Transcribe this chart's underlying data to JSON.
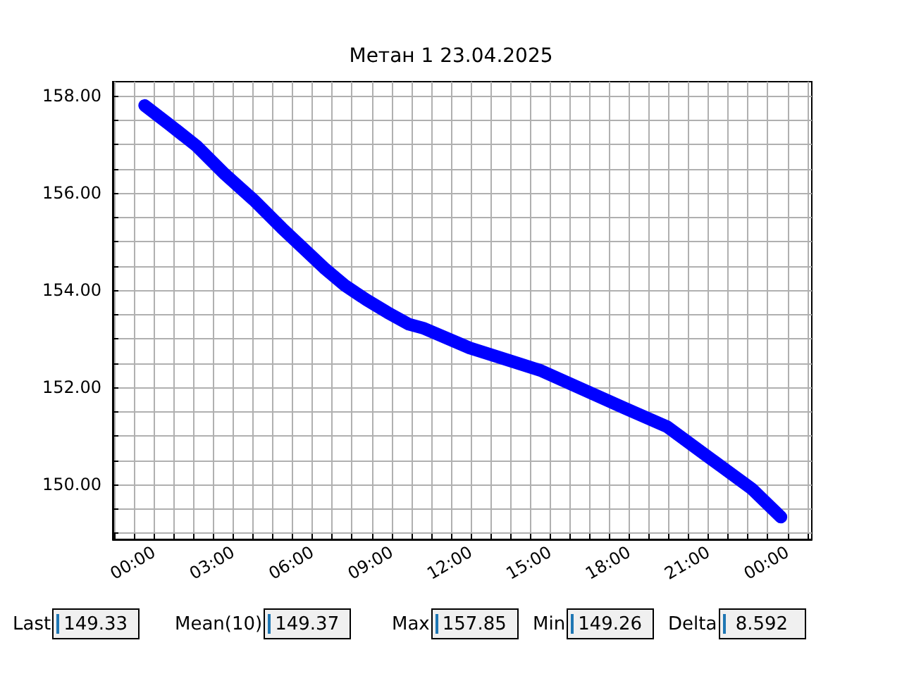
{
  "chart_data": {
    "type": "line",
    "title": "Метан 1 23.04.2025",
    "series": [
      {
        "color": "#0000ff",
        "x": [
          -0.35,
          0.56,
          1.63,
          2.7,
          3.77,
          4.84,
          5.64,
          6.44,
          7.25,
          8.05,
          8.85,
          9.65,
          10.19,
          11.96,
          14.63,
          17.84,
          19.44,
          20.89,
          22.65,
          23.75
        ],
        "values": [
          157.8,
          157.42,
          156.96,
          156.38,
          155.86,
          155.28,
          154.87,
          154.46,
          154.09,
          153.8,
          153.54,
          153.3,
          153.22,
          152.81,
          152.35,
          151.57,
          151.19,
          150.61,
          149.91,
          149.33
        ]
      }
    ],
    "xlim": [
      -1.56,
      24.92
    ],
    "xticks": [
      {
        "value": 0,
        "label": "00:00"
      },
      {
        "value": 3,
        "label": "03:00"
      },
      {
        "value": 6,
        "label": "06:00"
      },
      {
        "value": 9,
        "label": "09:00"
      },
      {
        "value": 12,
        "label": "12:00"
      },
      {
        "value": 15,
        "label": "15:00"
      },
      {
        "value": 18,
        "label": "18:00"
      },
      {
        "value": 21,
        "label": "21:00"
      },
      {
        "value": 24,
        "label": "00:00"
      }
    ],
    "ylim": [
      148.87,
      158.29
    ],
    "yticks": [
      {
        "value": 150,
        "label": "150.00"
      },
      {
        "value": 152,
        "label": "152.00"
      },
      {
        "value": 154,
        "label": "154.00"
      },
      {
        "value": 156,
        "label": "156.00"
      },
      {
        "value": 158,
        "label": "158.00"
      }
    ],
    "grid": true,
    "line_style": "solid",
    "annotations": [
      "Last",
      "149.33",
      "Mean(10)",
      "149.37",
      "Max",
      "157.85",
      "Min",
      "149.26",
      "Delta",
      " 8.592"
    ]
  }
}
